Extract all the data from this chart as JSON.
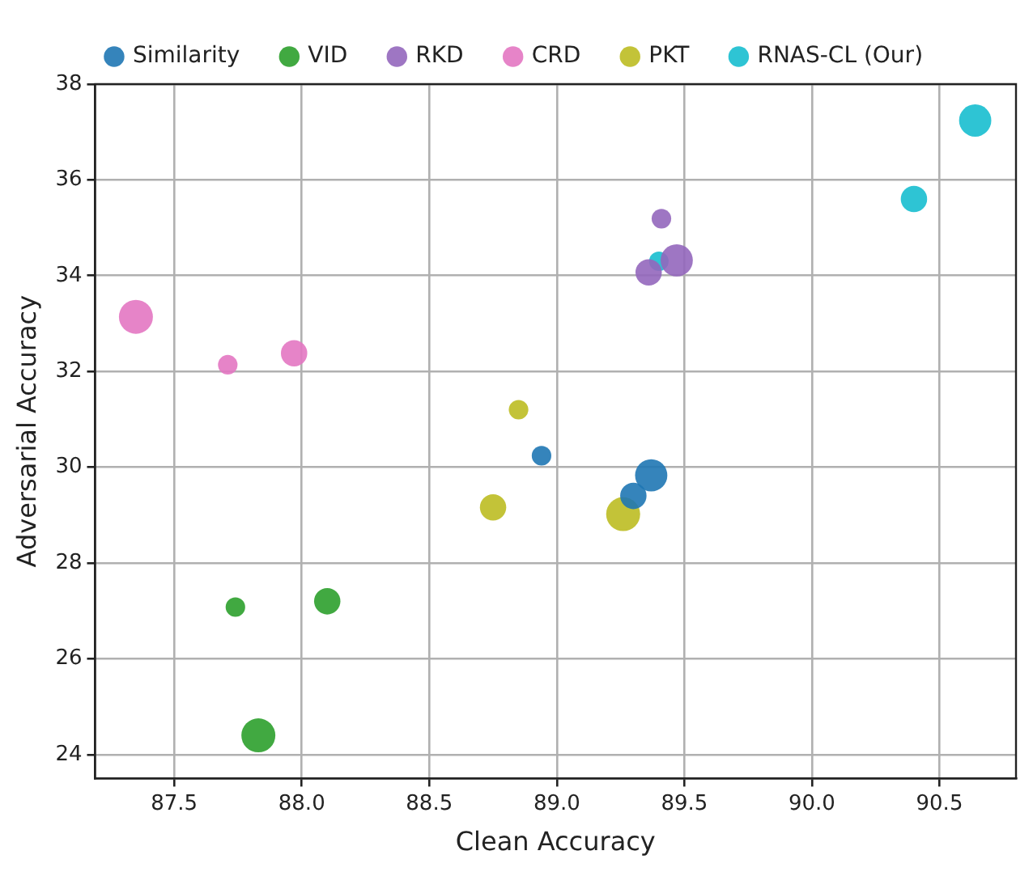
{
  "chart_data": {
    "type": "bubble",
    "xlabel": "Clean Accuracy",
    "ylabel": "Adversarial Accuracy",
    "xlim": [
      87.19,
      90.8
    ],
    "xticks": [
      {
        "value": 87.5,
        "label": "87.5"
      },
      {
        "value": 88,
        "label": "88.0"
      },
      {
        "value": 88.5,
        "label": "88.5"
      },
      {
        "value": 89,
        "label": "89.0"
      },
      {
        "value": 89.5,
        "label": "89.5"
      },
      {
        "value": 90,
        "label": "90.0"
      },
      {
        "value": 90.5,
        "label": "90.5"
      }
    ],
    "ylim": [
      23.5,
      38
    ],
    "yticks": [
      24,
      26,
      28,
      30,
      32,
      34,
      36,
      38
    ],
    "grid": true,
    "legend": "top",
    "marker": "circle",
    "series": [
      {
        "name": "Similarity",
        "color": "#1f77b4",
        "x": [
          88.94,
          89.3,
          89.37
        ],
        "values": [
          30.24,
          29.4,
          29.83
        ],
        "sizes": [
          0.33,
          0.6,
          0.9
        ]
      },
      {
        "name": "VID",
        "color": "#2ca02c",
        "x": [
          87.74,
          88.1,
          87.83
        ],
        "values": [
          27.08,
          27.2,
          24.4
        ],
        "sizes": [
          0.33,
          0.6,
          1
        ]
      },
      {
        "name": "RKD",
        "color": "#9467bd",
        "x": [
          89.41,
          89.36,
          89.47
        ],
        "values": [
          35.19,
          34.07,
          34.32
        ],
        "sizes": [
          0.33,
          0.6,
          0.9
        ]
      },
      {
        "name": "CRD",
        "color": "#e377c2",
        "x": [
          87.71,
          87.97,
          87.35
        ],
        "values": [
          32.14,
          32.38,
          33.14
        ],
        "sizes": [
          0.33,
          0.6,
          1
        ]
      },
      {
        "name": "PKT",
        "color": "#bcbd22",
        "x": [
          88.85,
          88.75,
          89.26
        ],
        "values": [
          31.2,
          29.16,
          29.02
        ],
        "sizes": [
          0.33,
          0.6,
          1
        ]
      },
      {
        "name": "RNAS-CL (Our)",
        "color": "#17becf",
        "x": [
          89.4,
          90.4,
          90.64
        ],
        "values": [
          34.3,
          35.6,
          37.24
        ],
        "sizes": [
          0.33,
          0.6,
          0.9
        ]
      }
    ]
  }
}
